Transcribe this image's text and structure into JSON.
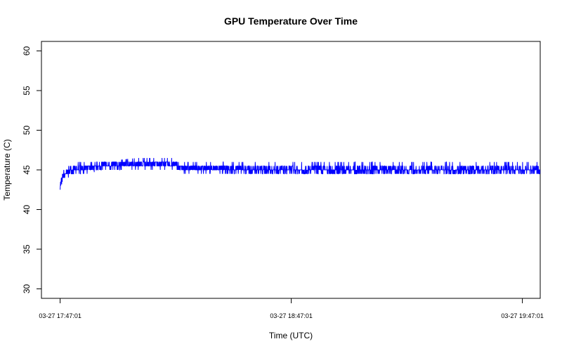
{
  "chart_data": {
    "type": "line",
    "title": "GPU Temperature Over Time",
    "xlabel": "Time (UTC)",
    "ylabel": "Temperature (C)",
    "x_ticks": [
      "03-27 17:47:01",
      "03-27 18:47:01",
      "03-27 19:47:01"
    ],
    "y_ticks": [
      30,
      35,
      40,
      45,
      50,
      55,
      60
    ],
    "xlim": [
      "03-27 17:42:10",
      "03-27 19:51:39"
    ],
    "ylim": [
      28.8,
      61.2
    ],
    "grid": false,
    "legend": "none",
    "series": [
      {
        "color": "#0000ff",
        "x": [
          "03-27 17:47:01",
          "03-27 17:47:19",
          "03-27 17:47:37",
          "03-27 17:47:55",
          "03-27 17:48:31",
          "03-27 17:49:07",
          "03-27 17:50:01",
          "03-27 17:51:31",
          "03-27 17:53:01",
          "03-27 17:55:01",
          "03-27 17:57:01",
          "03-27 18:07:01",
          "03-27 18:17:01",
          "03-27 18:18:01",
          "03-27 18:47:01",
          "03-27 19:17:01",
          "03-27 19:47:01",
          "03-27 19:51:39"
        ],
        "y": [
          43.0,
          43.5,
          44.0,
          44.5,
          44.5,
          44.8,
          45.0,
          45.0,
          45.2,
          45.3,
          45.5,
          45.7,
          45.7,
          45.2,
          45.0,
          45.0,
          45.0,
          45.0
        ],
        "upper": [
          43.5,
          44.0,
          44.5,
          45.0,
          45.0,
          45.5,
          45.5,
          46.0,
          46.0,
          46.0,
          46.0,
          46.5,
          46.5,
          46.0,
          46.0,
          46.0,
          46.0,
          46.0
        ],
        "lower": [
          42.5,
          43.0,
          43.5,
          44.0,
          44.0,
          44.0,
          44.5,
          44.5,
          44.5,
          44.5,
          45.0,
          45.0,
          45.0,
          44.5,
          44.5,
          44.5,
          44.5,
          44.5
        ]
      }
    ]
  }
}
